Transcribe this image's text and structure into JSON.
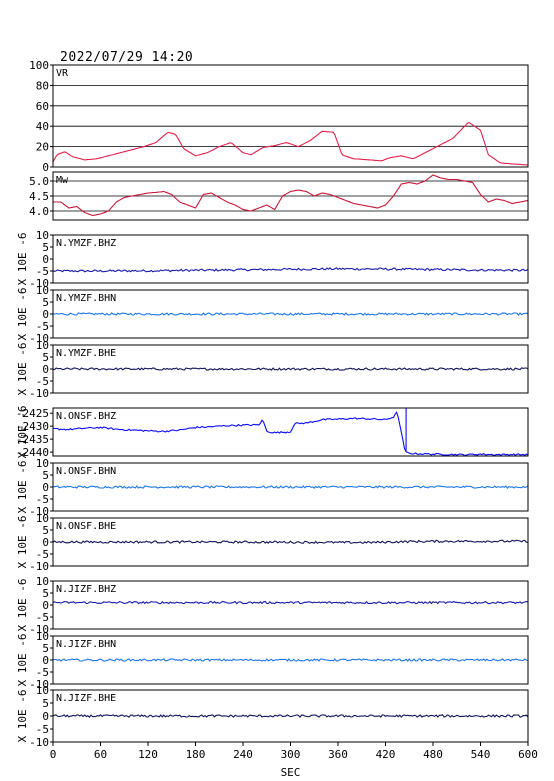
{
  "header": {
    "timestamp": "2022/07/29 14:20"
  },
  "colors": {
    "vr": "#e0204a",
    "mw": "#c8183c",
    "dark_blue": "#1a1aa8",
    "navy": "#14145a",
    "light_blue": "#1e78e6",
    "deep_blue": "#0a0aff",
    "axis": "#000000"
  },
  "chart_data": {
    "type": "line",
    "xlabel": "SEC",
    "xlim": [
      0,
      600
    ],
    "xticks": [
      "0",
      "60",
      "120",
      "180",
      "240",
      "300",
      "360",
      "420",
      "480",
      "540",
      "600"
    ],
    "panels": [
      {
        "id": "vr",
        "label": "VR",
        "ylabel": "",
        "ylim": [
          0,
          100
        ],
        "yticks": [
          "0",
          "20",
          "40",
          "60",
          "80",
          "100"
        ],
        "grid": true,
        "color": "#e0204a",
        "x": [
          0,
          5,
          15,
          25,
          40,
          55,
          75,
          95,
          115,
          130,
          145,
          155,
          165,
          180,
          195,
          210,
          225,
          240,
          250,
          265,
          280,
          295,
          310,
          325,
          340,
          355,
          365,
          380,
          400,
          415,
          425,
          440,
          455,
          470,
          490,
          505,
          525,
          540,
          550,
          565,
          580,
          600
        ],
        "values": [
          5,
          12,
          15,
          10,
          7,
          8,
          12,
          16,
          20,
          24,
          34,
          32,
          18,
          11,
          14,
          20,
          24,
          14,
          12,
          19,
          21,
          24,
          20,
          26,
          35,
          34,
          12,
          8,
          7,
          6,
          9,
          11,
          8,
          14,
          22,
          28,
          44,
          36,
          12,
          4,
          3,
          2
        ]
      },
      {
        "id": "mw",
        "label": "Mw",
        "ylabel": "",
        "ylim": [
          3.7,
          5.3
        ],
        "yticks": [
          "4.0",
          "4.5",
          "5.0"
        ],
        "grid": true,
        "color": "#c8183c",
        "x": [
          0,
          10,
          20,
          30,
          40,
          50,
          60,
          70,
          80,
          90,
          100,
          110,
          120,
          130,
          140,
          150,
          160,
          170,
          180,
          190,
          200,
          210,
          220,
          230,
          240,
          250,
          260,
          270,
          280,
          290,
          300,
          310,
          320,
          330,
          340,
          350,
          360,
          370,
          380,
          390,
          400,
          410,
          420,
          430,
          440,
          450,
          460,
          470,
          480,
          490,
          500,
          510,
          520,
          530,
          540,
          550,
          560,
          570,
          580,
          590,
          600
        ],
        "values": [
          4.3,
          4.3,
          4.1,
          4.15,
          3.95,
          3.85,
          3.9,
          4.0,
          4.3,
          4.45,
          4.5,
          4.55,
          4.6,
          4.62,
          4.65,
          4.55,
          4.3,
          4.2,
          4.1,
          4.55,
          4.6,
          4.45,
          4.3,
          4.2,
          4.05,
          4.0,
          4.1,
          4.2,
          4.05,
          4.5,
          4.65,
          4.7,
          4.65,
          4.5,
          4.6,
          4.55,
          4.45,
          4.35,
          4.25,
          4.2,
          4.15,
          4.1,
          4.2,
          4.5,
          4.9,
          4.95,
          4.9,
          5.0,
          5.2,
          5.1,
          5.05,
          5.05,
          5.0,
          4.95,
          4.55,
          4.3,
          4.4,
          4.35,
          4.25,
          4.3,
          4.35
        ]
      },
      {
        "id": "ymzf_bhz",
        "label": "N.YMZF.BHZ",
        "ylabel": "X 10E -6",
        "ylim": [
          -10,
          10
        ],
        "yticks": [
          "-10",
          "-5",
          "0",
          "5",
          "10"
        ],
        "color": "#1a1aa8",
        "x": [
          0,
          60,
          120,
          180,
          240,
          300,
          360,
          420,
          480,
          540,
          600
        ],
        "values": [
          -5,
          -5,
          -4.9,
          -4.7,
          -4.5,
          -4.3,
          -4.1,
          -4.2,
          -4.4,
          -4.6,
          -4.7
        ]
      },
      {
        "id": "ymzf_bhn",
        "label": "N.YMZF.BHN",
        "ylabel": "X 10E -6",
        "ylim": [
          -10,
          10
        ],
        "yticks": [
          "-10",
          "-5",
          "0",
          "5",
          "10"
        ],
        "color": "#1e78e6",
        "x": [
          0,
          300,
          600
        ],
        "values": [
          0,
          0,
          0
        ]
      },
      {
        "id": "ymzf_bhe",
        "label": "N.YMZF.BHE",
        "ylabel": "X 10E -6",
        "ylim": [
          -10,
          10
        ],
        "yticks": [
          "-10",
          "-5",
          "0",
          "5",
          "10"
        ],
        "color": "#14145a",
        "x": [
          0,
          300,
          600
        ],
        "values": [
          0,
          0,
          0
        ]
      },
      {
        "id": "onsf_bhz",
        "label": "N.ONSF.BHZ",
        "ylabel": "X 10E -6",
        "ylim": [
          -2441.5,
          -2423
        ],
        "yticks": [
          "-2440",
          "-2435",
          "-2430",
          "-2425"
        ],
        "color": "#0a0aff",
        "x": [
          0,
          20,
          40,
          60,
          80,
          100,
          120,
          140,
          160,
          180,
          200,
          220,
          240,
          260,
          265,
          270,
          280,
          300,
          305,
          320,
          340,
          360,
          380,
          400,
          420,
          430,
          435,
          437,
          445,
          450,
          460,
          480,
          500,
          520,
          540,
          560,
          580,
          600
        ],
        "values": [
          -2431,
          -2431.3,
          -2430.8,
          -2430.5,
          -2431.2,
          -2431.5,
          -2431.8,
          -2432,
          -2431.5,
          -2430.5,
          -2430.2,
          -2429.8,
          -2429.6,
          -2429.5,
          -2427.5,
          -2432,
          -2432.5,
          -2432.2,
          -2429,
          -2428.8,
          -2427.5,
          -2427.3,
          -2427,
          -2427.2,
          -2427.5,
          -2426.5,
          -2424.5,
          -2428,
          -2440,
          -2440.5,
          -2440.6,
          -2440.8,
          -2440.9,
          -2441,
          -2440.8,
          -2441,
          -2440.9,
          -2441
        ]
      },
      {
        "id": "onsf_bhn",
        "label": "N.ONSF.BHN",
        "ylabel": "X 10E -6",
        "ylim": [
          -10,
          10
        ],
        "yticks": [
          "-10",
          "-5",
          "0",
          "5",
          "10"
        ],
        "color": "#1e78e6",
        "x": [
          0,
          300,
          600
        ],
        "values": [
          0,
          0,
          0
        ]
      },
      {
        "id": "onsf_bhe",
        "label": "N.ONSF.BHE",
        "ylabel": "X 10E -6",
        "ylim": [
          -10,
          10
        ],
        "yticks": [
          "-10",
          "-5",
          "0",
          "5",
          "10"
        ],
        "color": "#14145a",
        "x": [
          0,
          200,
          330,
          360,
          400,
          450,
          500,
          600
        ],
        "values": [
          0,
          0,
          -0.1,
          -0.2,
          -0.2,
          0.2,
          0.3,
          0.3
        ]
      },
      {
        "id": "jizf_bhz",
        "label": "N.JIZF.BHZ",
        "ylabel": "X 10E -6",
        "ylim": [
          -10,
          10
        ],
        "yticks": [
          "-10",
          "-5",
          "0",
          "5",
          "10"
        ],
        "color": "#1a1aa8",
        "x": [
          0,
          300,
          600
        ],
        "values": [
          1,
          1,
          1
        ]
      },
      {
        "id": "jizf_bhn",
        "label": "N.JIZF.BHN",
        "ylabel": "X 10E -6",
        "ylim": [
          -10,
          10
        ],
        "yticks": [
          "-10",
          "-5",
          "0",
          "5",
          "10"
        ],
        "color": "#1e78e6",
        "x": [
          0,
          300,
          600
        ],
        "values": [
          0,
          0,
          0
        ]
      },
      {
        "id": "jizf_bhe",
        "label": "N.JIZF.BHE",
        "ylabel": "X 10E -6",
        "ylim": [
          -10,
          10
        ],
        "yticks": [
          "-10",
          "-5",
          "0",
          "5",
          "10"
        ],
        "color": "#14145a",
        "x": [
          0,
          300,
          600
        ],
        "values": [
          0,
          0,
          0
        ]
      }
    ]
  }
}
